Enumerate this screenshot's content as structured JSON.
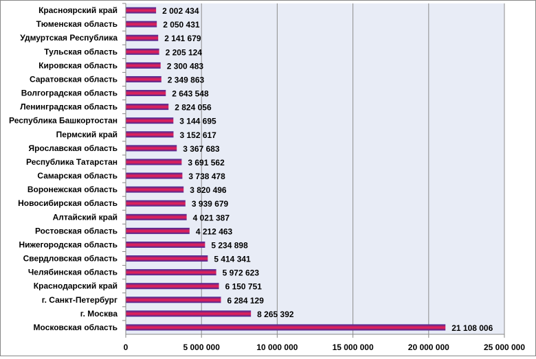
{
  "chart_data": {
    "type": "bar",
    "orientation": "horizontal",
    "title": "",
    "xlabel": "",
    "ylabel": "",
    "categories": [
      "Красноярский край",
      "Тюменская область",
      "Удмуртская Республика",
      "Тульская область",
      "Кировская область",
      "Саратовская область",
      "Волгоградская область",
      "Ленинградская область",
      "Республика Башкортостан",
      "Пермский край",
      "Ярославская область",
      "Республика Татарстан",
      "Самарская область",
      "Воронежская область",
      "Новосибирская область",
      "Алтайский край",
      "Ростовская область",
      "Нижегородская область",
      "Свердловская область",
      "Челябинская область",
      "Краснодарский край",
      "г. Санкт-Петербург",
      "г. Москва",
      "Московская область"
    ],
    "values": [
      2002434,
      2050431,
      2141679,
      2205124,
      2300483,
      2349863,
      2643548,
      2824056,
      3144695,
      3152617,
      3367683,
      3691562,
      3738478,
      3820496,
      3939679,
      4021387,
      4212463,
      5234898,
      5414341,
      5972623,
      6150751,
      6284129,
      8265392,
      21108006
    ],
    "value_labels": [
      "2 002 434",
      "2 050 431",
      "2 141 679",
      "2 205 124",
      "2 300 483",
      "2 349 863",
      "2 643 548",
      "2 824 056",
      "3 144 695",
      "3 152 617",
      "3 367 683",
      "3 691 562",
      "3 738 478",
      "3 820 496",
      "3 939 679",
      "4 021 387",
      "4 212 463",
      "5 234 898",
      "5 414 341",
      "5 972 623",
      "6 150 751",
      "6 284 129",
      "8 265 392",
      "21 108 006"
    ],
    "x_ticks": [
      0,
      5000000,
      10000000,
      15000000,
      20000000,
      25000000
    ],
    "x_tick_labels": [
      "0",
      "5 000 000",
      "10 000 000",
      "15 000 000",
      "20 000 000",
      "25 000 000"
    ],
    "xlim": [
      0,
      25000000
    ],
    "grid": "vertical",
    "legend": "none",
    "colors": {
      "plot_background": "#E8ECF6",
      "gridline": "#8C8C8C",
      "bar_top": "#3A2A9A",
      "bar_middle": "#E0205A",
      "bar_bottom": "#3A2A9A"
    }
  }
}
